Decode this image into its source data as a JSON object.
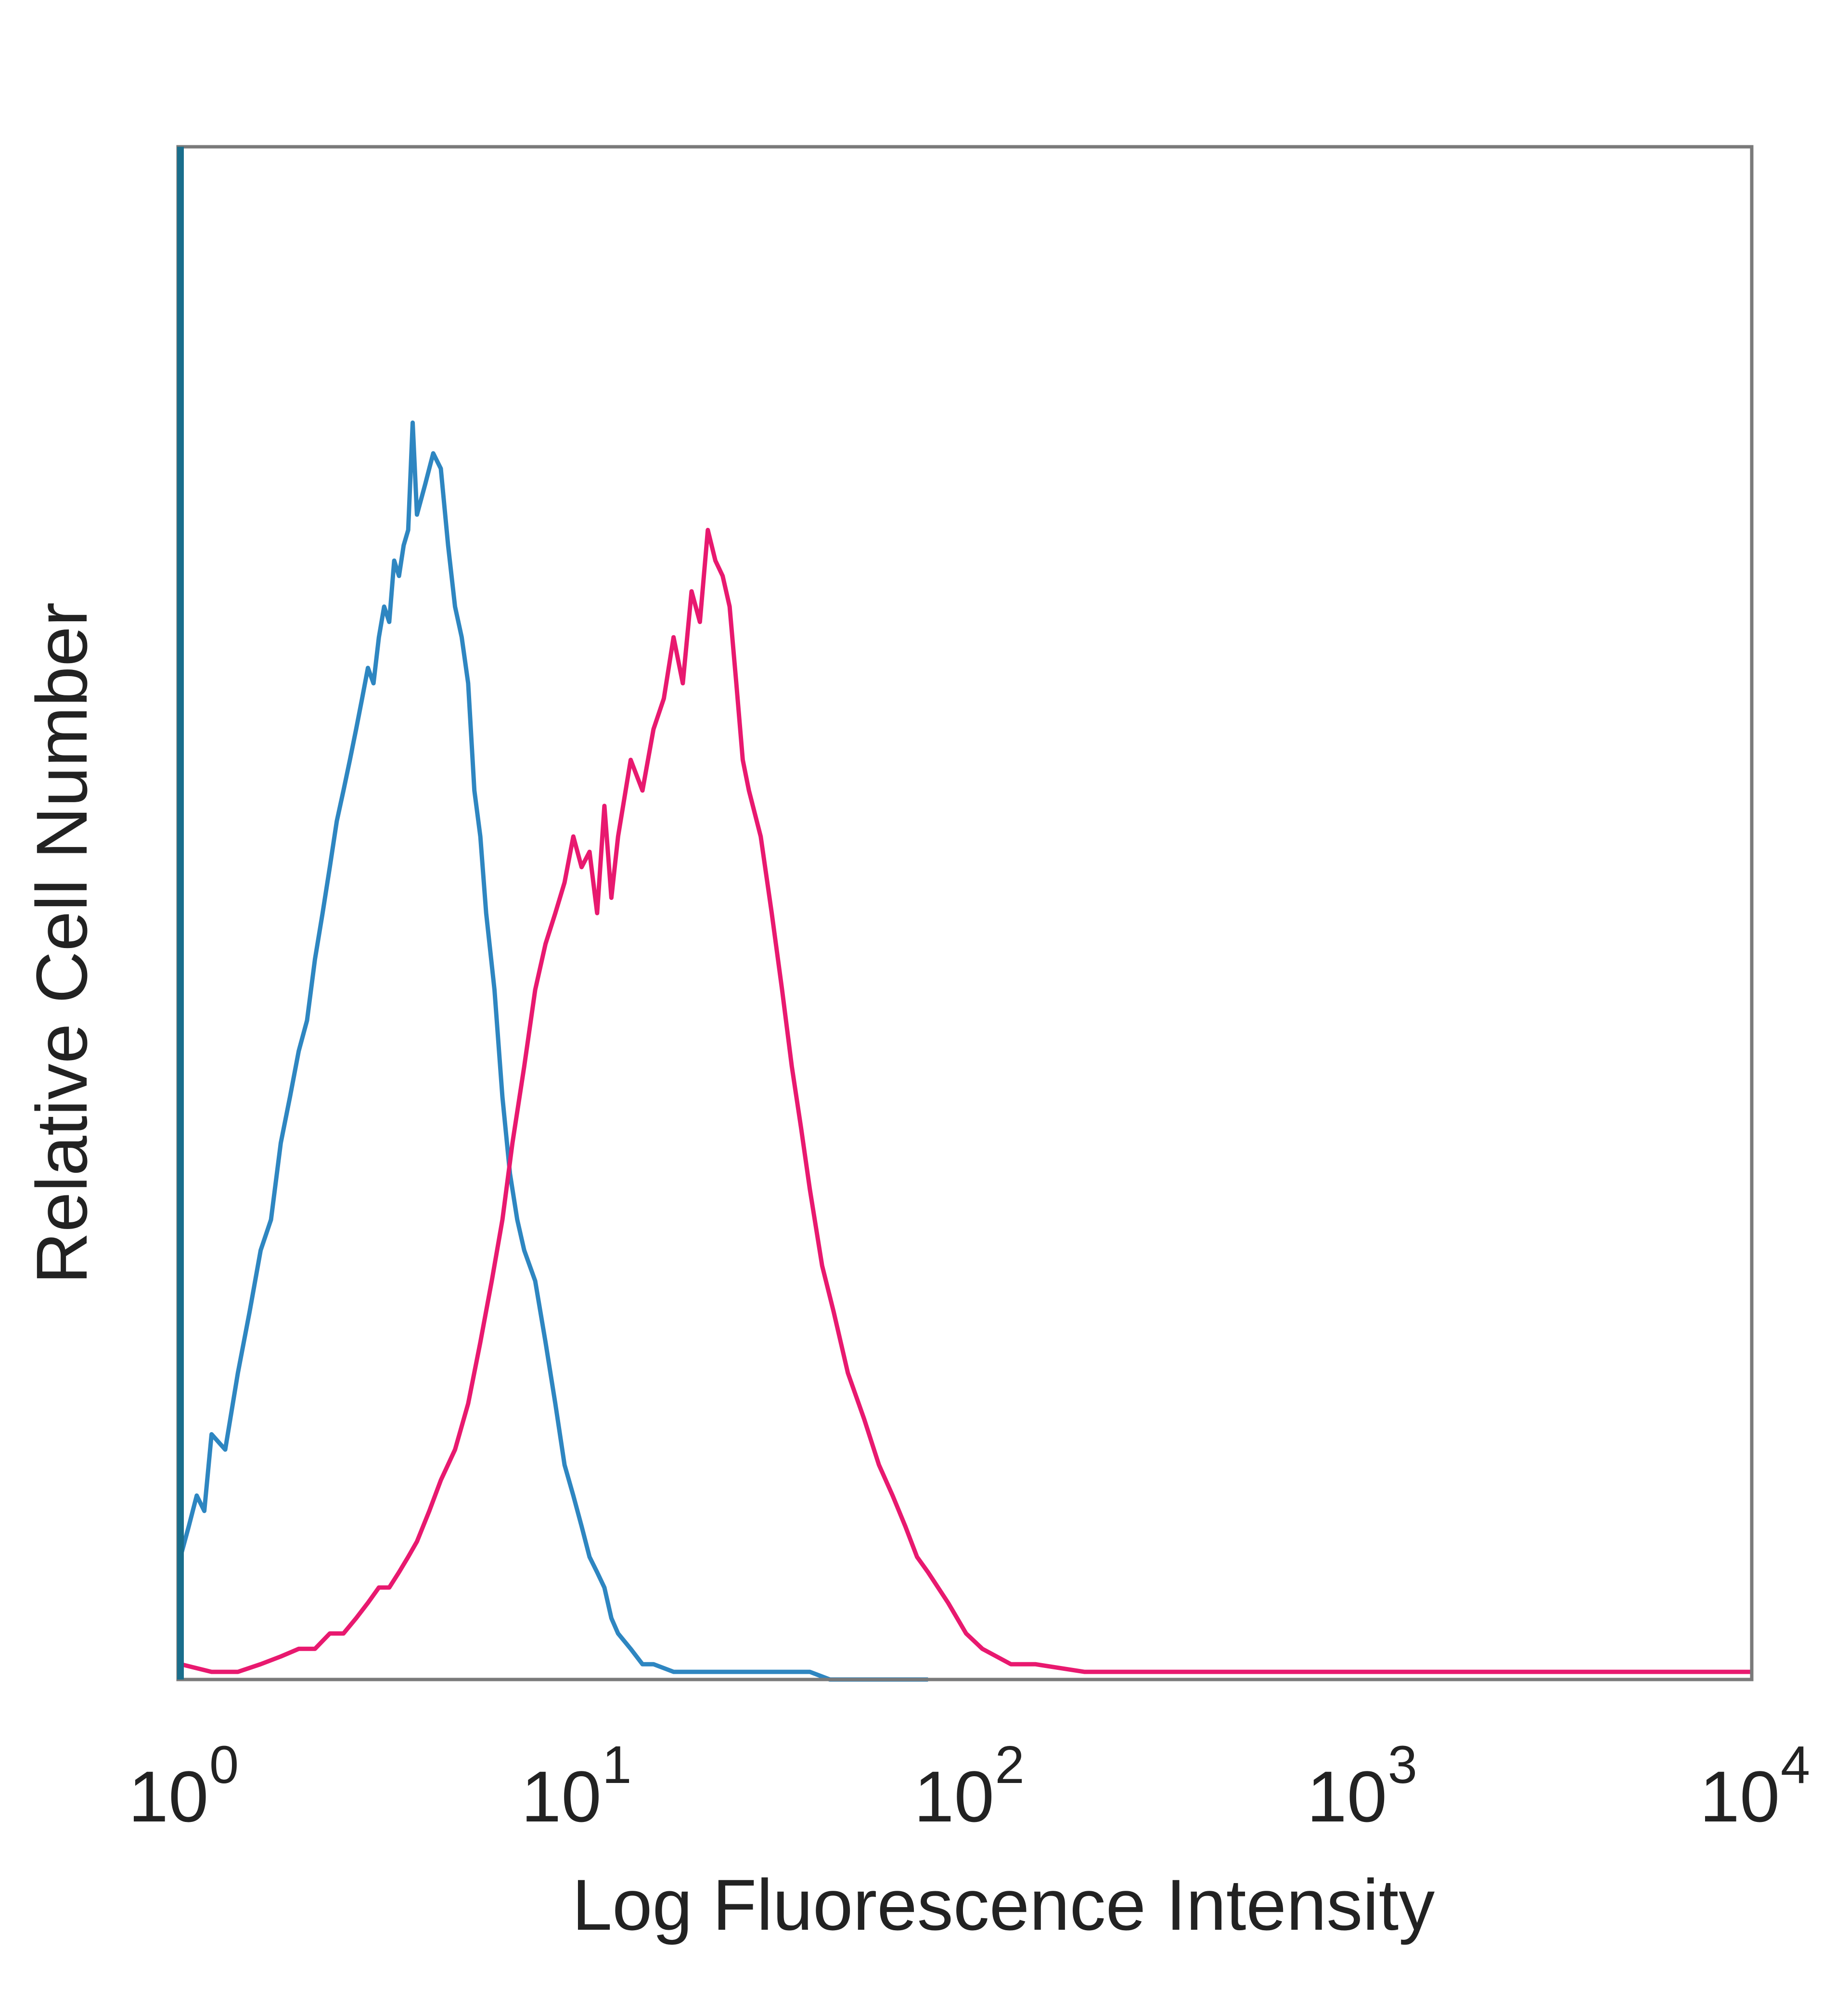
{
  "chart_data": {
    "type": "line",
    "title": "",
    "xlabel": "Log Fluorescence Intensity",
    "ylabel": "Relative Cell Number",
    "x_scale": "log",
    "xlim": [
      1,
      10000
    ],
    "ylim": [
      0,
      100
    ],
    "grid": false,
    "x_ticks": [
      {
        "base": "10",
        "exp": "0",
        "value": 1
      },
      {
        "base": "10",
        "exp": "1",
        "value": 10
      },
      {
        "base": "10",
        "exp": "2",
        "value": 100
      },
      {
        "base": "10",
        "exp": "3",
        "value": 1000
      },
      {
        "base": "10",
        "exp": "4",
        "value": 10000
      }
    ],
    "series": [
      {
        "color": "#2e86c1",
        "x": [
          1.0,
          1.05,
          1.1,
          1.15,
          1.2,
          1.3,
          1.4,
          1.5,
          1.6,
          1.7,
          1.8,
          1.9,
          2.0,
          2.1,
          2.2,
          2.3,
          2.4,
          2.5,
          2.6,
          2.7,
          2.8,
          2.9,
          3.0,
          3.1,
          3.2,
          3.3,
          3.4,
          3.5,
          3.6,
          3.7,
          3.8,
          3.9,
          4.0,
          4.2,
          4.4,
          4.6,
          4.8,
          5.0,
          5.2,
          5.4,
          5.6,
          5.8,
          6.0,
          6.3,
          6.6,
          6.9,
          7.2,
          7.5,
          8.0,
          8.5,
          9.0,
          9.5,
          10.0,
          10.5,
          11.0,
          11.5,
          12.0,
          12.5,
          13.0,
          14.0,
          15.0,
          16.0,
          18.0,
          20.0,
          25.0,
          30.0,
          35.0,
          40.0,
          45.0,
          50.0,
          80.0
        ],
        "y": [
          8,
          10,
          12,
          11,
          16,
          15,
          20,
          24,
          28,
          30,
          35,
          38,
          41,
          43,
          47,
          50,
          53,
          56,
          58,
          60,
          62,
          64,
          66,
          65,
          68,
          70,
          69,
          73,
          72,
          74,
          75,
          82,
          76,
          78,
          80,
          79,
          74,
          70,
          68,
          65,
          58,
          55,
          50,
          45,
          38,
          33,
          30,
          28,
          26,
          22,
          18,
          14,
          12,
          10,
          8,
          7,
          6,
          4,
          3,
          2,
          1,
          1,
          0.5,
          0.5,
          0.5,
          0.5,
          0.5,
          0.5,
          0,
          0,
          0
        ]
      },
      {
        "color": "#e8196f",
        "x": [
          1.0,
          1.2,
          1.4,
          1.6,
          1.8,
          2.0,
          2.2,
          2.4,
          2.6,
          2.8,
          3.0,
          3.2,
          3.4,
          3.6,
          3.8,
          4.0,
          4.3,
          4.6,
          5.0,
          5.4,
          5.8,
          6.2,
          6.6,
          7.0,
          7.5,
          8.0,
          8.5,
          9.0,
          9.5,
          10.0,
          10.5,
          11.0,
          11.5,
          12.0,
          12.5,
          13.0,
          14.0,
          15.0,
          16.0,
          17.0,
          18.0,
          19.0,
          20.0,
          21.0,
          22.0,
          23.0,
          24.0,
          25.0,
          26.0,
          27.0,
          28.0,
          30.0,
          32.0,
          34.0,
          36.0,
          38.0,
          40.0,
          43.0,
          46.0,
          50.0,
          55.0,
          60.0,
          65.0,
          70.0,
          75.0,
          80.0,
          90.0,
          100.0,
          110.0,
          130.0,
          150.0,
          200.0,
          300.0,
          500.0,
          1000.0,
          2000.0,
          5000.0,
          10000.0
        ],
        "y": [
          1,
          0.5,
          0.5,
          1,
          1.5,
          2,
          2,
          3,
          3,
          4,
          5,
          6,
          6,
          7,
          8,
          9,
          11,
          13,
          15,
          18,
          22,
          26,
          30,
          35,
          40,
          45,
          48,
          50,
          52,
          55,
          53,
          54,
          50,
          57,
          51,
          55,
          60,
          58,
          62,
          64,
          68,
          65,
          71,
          69,
          75,
          73,
          72,
          70,
          65,
          60,
          58,
          55,
          50,
          45,
          40,
          36,
          32,
          27,
          24,
          20,
          17,
          14,
          12,
          10,
          8,
          7,
          5,
          3,
          2,
          1,
          1,
          0.5,
          0.5,
          0.5,
          0.5,
          0.5,
          0.5,
          0.5
        ]
      }
    ]
  }
}
